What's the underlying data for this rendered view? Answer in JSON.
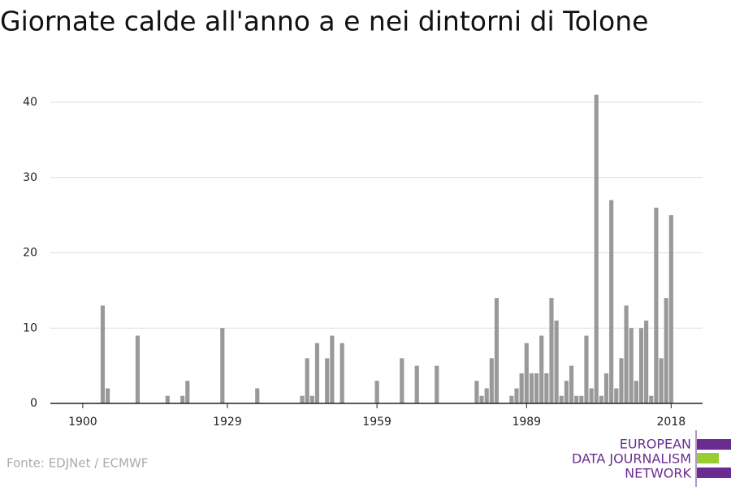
{
  "chart_data": {
    "type": "bar",
    "title": "Giornate calde all'anno a e nei dintorni di Tolone",
    "source": "Fonte: EDJNet / ECMWF",
    "logo": [
      "EUROPEAN",
      "DATA JOURNALISM",
      "NETWORK"
    ],
    "color": "#999999",
    "x": [
      1900,
      1901,
      1902,
      1903,
      1904,
      1905,
      1906,
      1907,
      1908,
      1909,
      1910,
      1911,
      1912,
      1913,
      1914,
      1915,
      1916,
      1917,
      1918,
      1919,
      1920,
      1921,
      1922,
      1923,
      1924,
      1925,
      1926,
      1927,
      1928,
      1929,
      1930,
      1931,
      1932,
      1933,
      1934,
      1935,
      1936,
      1937,
      1938,
      1939,
      1940,
      1941,
      1942,
      1943,
      1944,
      1945,
      1946,
      1947,
      1948,
      1949,
      1950,
      1951,
      1952,
      1953,
      1954,
      1955,
      1956,
      1957,
      1958,
      1959,
      1960,
      1961,
      1962,
      1963,
      1964,
      1965,
      1966,
      1967,
      1968,
      1969,
      1970,
      1971,
      1972,
      1973,
      1974,
      1975,
      1976,
      1977,
      1978,
      1979,
      1980,
      1981,
      1982,
      1983,
      1984,
      1985,
      1986,
      1987,
      1988,
      1989,
      1990,
      1991,
      1992,
      1993,
      1994,
      1995,
      1996,
      1997,
      1998,
      1999,
      2000,
      2001,
      2002,
      2003,
      2004,
      2005,
      2006,
      2007,
      2008,
      2009,
      2010,
      2011,
      2012,
      2013,
      2014,
      2015,
      2016,
      2017,
      2018
    ],
    "values": [
      0,
      0,
      0,
      0,
      13,
      2,
      0,
      0,
      0,
      0,
      0,
      9,
      0,
      0,
      0,
      0,
      0,
      1,
      0,
      0,
      1,
      3,
      0,
      0,
      0,
      0,
      0,
      0,
      10,
      0,
      0,
      0,
      0,
      0,
      0,
      2,
      0,
      0,
      0,
      0,
      0,
      0,
      0,
      0,
      1,
      6,
      1,
      8,
      0,
      6,
      9,
      0,
      8,
      0,
      0,
      0,
      0,
      0,
      0,
      3,
      0,
      0,
      0,
      0,
      6,
      0,
      0,
      5,
      0,
      0,
      0,
      5,
      0,
      0,
      0,
      0,
      0,
      0,
      0,
      3,
      1,
      2,
      6,
      14,
      0,
      0,
      1,
      2,
      4,
      8,
      4,
      4,
      9,
      4,
      14,
      11,
      1,
      3,
      5,
      1,
      1,
      9,
      2,
      41,
      1,
      4,
      27,
      2,
      6,
      13,
      10,
      3,
      10,
      11,
      1,
      26,
      6,
      14,
      25
    ],
    "xlim": [
      1893.5,
      2024.3
    ],
    "xticks": [
      1900,
      1929,
      1959,
      1989,
      2018
    ],
    "ylim": [
      0,
      40
    ],
    "yticks": [
      0,
      10,
      20,
      30,
      40
    ],
    "grid": true
  }
}
